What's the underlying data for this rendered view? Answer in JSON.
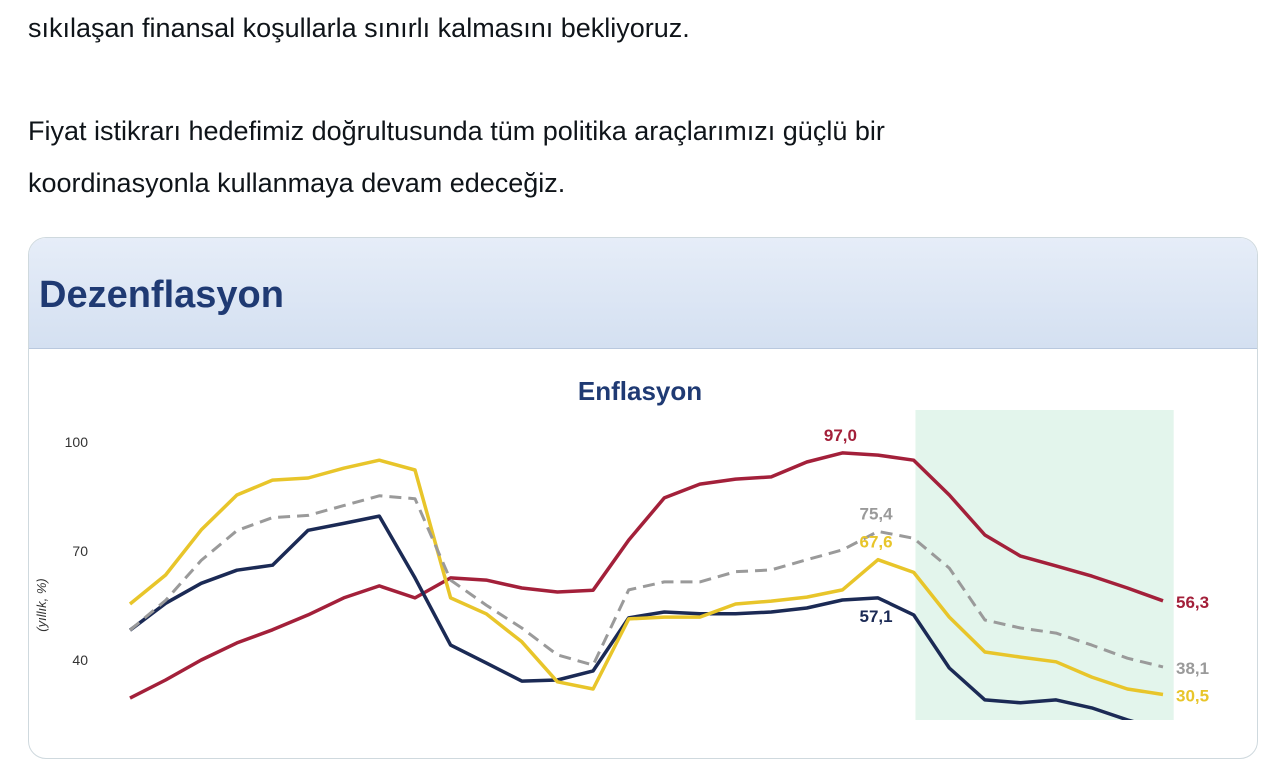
{
  "post": {
    "line1": "sıkılaşan finansal koşullarla sınırlı kalmasını bekliyoruz.",
    "line2": "Fiyat istikrarı hedefimiz doğrultusunda tüm politika araçlarımızı güçlü bir",
    "line3": "koordinasyonla kullanmaya devam edeceğiz."
  },
  "card": {
    "title": "Dezenflasyon"
  },
  "chart_data": {
    "type": "line",
    "title": "Enflasyon",
    "ylabel": "(yıllık, %)",
    "yticks": [
      "100",
      "70",
      "40"
    ],
    "ylim": [
      20,
      105
    ],
    "x": [
      0,
      1,
      2,
      3,
      4,
      5,
      6,
      7,
      8,
      9,
      10,
      11,
      12,
      13,
      14,
      15,
      16,
      17,
      18,
      19,
      20,
      21,
      22,
      23,
      24,
      25,
      26,
      27,
      28,
      29
    ],
    "shaded_region": {
      "from": 22.05,
      "to": 29.3,
      "color": "#e3f5ec"
    },
    "grid": false,
    "series": [
      {
        "color": "#a3203a",
        "dash": false,
        "label": "97,0",
        "label_at": 20,
        "end_label": "56,3",
        "values": [
          29.5,
          34.5,
          40,
          44.7,
          48.3,
          52.4,
          57.1,
          60.4,
          57.1,
          62.6,
          62,
          59.8,
          58.7,
          59.2,
          73,
          84.6,
          88.4,
          89.8,
          90.4,
          94.5,
          97.0,
          96.4,
          95,
          85.4,
          74.4,
          68.6,
          65.9,
          63.1,
          59.8,
          56.3
        ]
      },
      {
        "color": "#1b2a55",
        "dash": false,
        "label": "57,1",
        "label_at": 21,
        "end_label": "",
        "values": [
          48.2,
          55.6,
          61.1,
          64.7,
          66.1,
          75.7,
          77.6,
          79.6,
          62.6,
          44.1,
          39.2,
          34.2,
          34.5,
          37,
          51.6,
          53.2,
          52.7,
          52.7,
          53.2,
          54.3,
          56.5,
          57.1,
          52.4,
          37.8,
          29,
          28.2,
          29,
          26.8,
          23.5,
          20.7
        ]
      },
      {
        "color": "#e8c52a",
        "dash": false,
        "label": "67,6",
        "label_at": 21,
        "end_label": "30,5",
        "values": [
          55.4,
          63.4,
          75.8,
          85.4,
          89.5,
          90.1,
          92.8,
          95,
          92.3,
          57.1,
          52.7,
          45,
          34,
          32,
          51.3,
          51.8,
          51.8,
          55.4,
          56.2,
          57.3,
          59.3,
          67.6,
          64.1,
          51.8,
          42.2,
          40.8,
          39.5,
          35.3,
          32,
          30.5
        ]
      },
      {
        "color": "#9a9a9a",
        "dash": true,
        "label": "75,4",
        "label_at": 21,
        "end_label": "38,1",
        "values": [
          48.2,
          56.4,
          67.4,
          75.6,
          79.2,
          79.8,
          82.5,
          85.2,
          84.4,
          62,
          55.1,
          48.8,
          41.4,
          38.6,
          59.3,
          61.5,
          61.5,
          64.3,
          64.8,
          67.6,
          70.3,
          75.4,
          73.5,
          65.3,
          51,
          48.8,
          47.4,
          44.1,
          40.5,
          38.1
        ]
      }
    ]
  }
}
